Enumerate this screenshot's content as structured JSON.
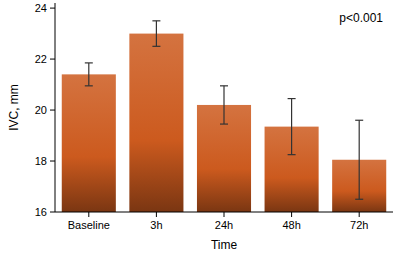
{
  "chart_data": {
    "type": "bar",
    "x_label": "Time",
    "y_label": "IVC, mm",
    "annotation": "p<0.001",
    "categories": [
      "Baseline",
      "3h",
      "24h",
      "48h",
      "72h"
    ],
    "values": [
      21.4,
      23.0,
      20.2,
      19.35,
      18.05
    ],
    "errors": [
      0.45,
      0.5,
      0.75,
      1.1,
      1.55
    ],
    "color": "#cc5a1e",
    "ylim": [
      16,
      24.2
    ],
    "yticks": [
      16,
      18,
      20,
      22,
      24
    ],
    "grid": false
  }
}
